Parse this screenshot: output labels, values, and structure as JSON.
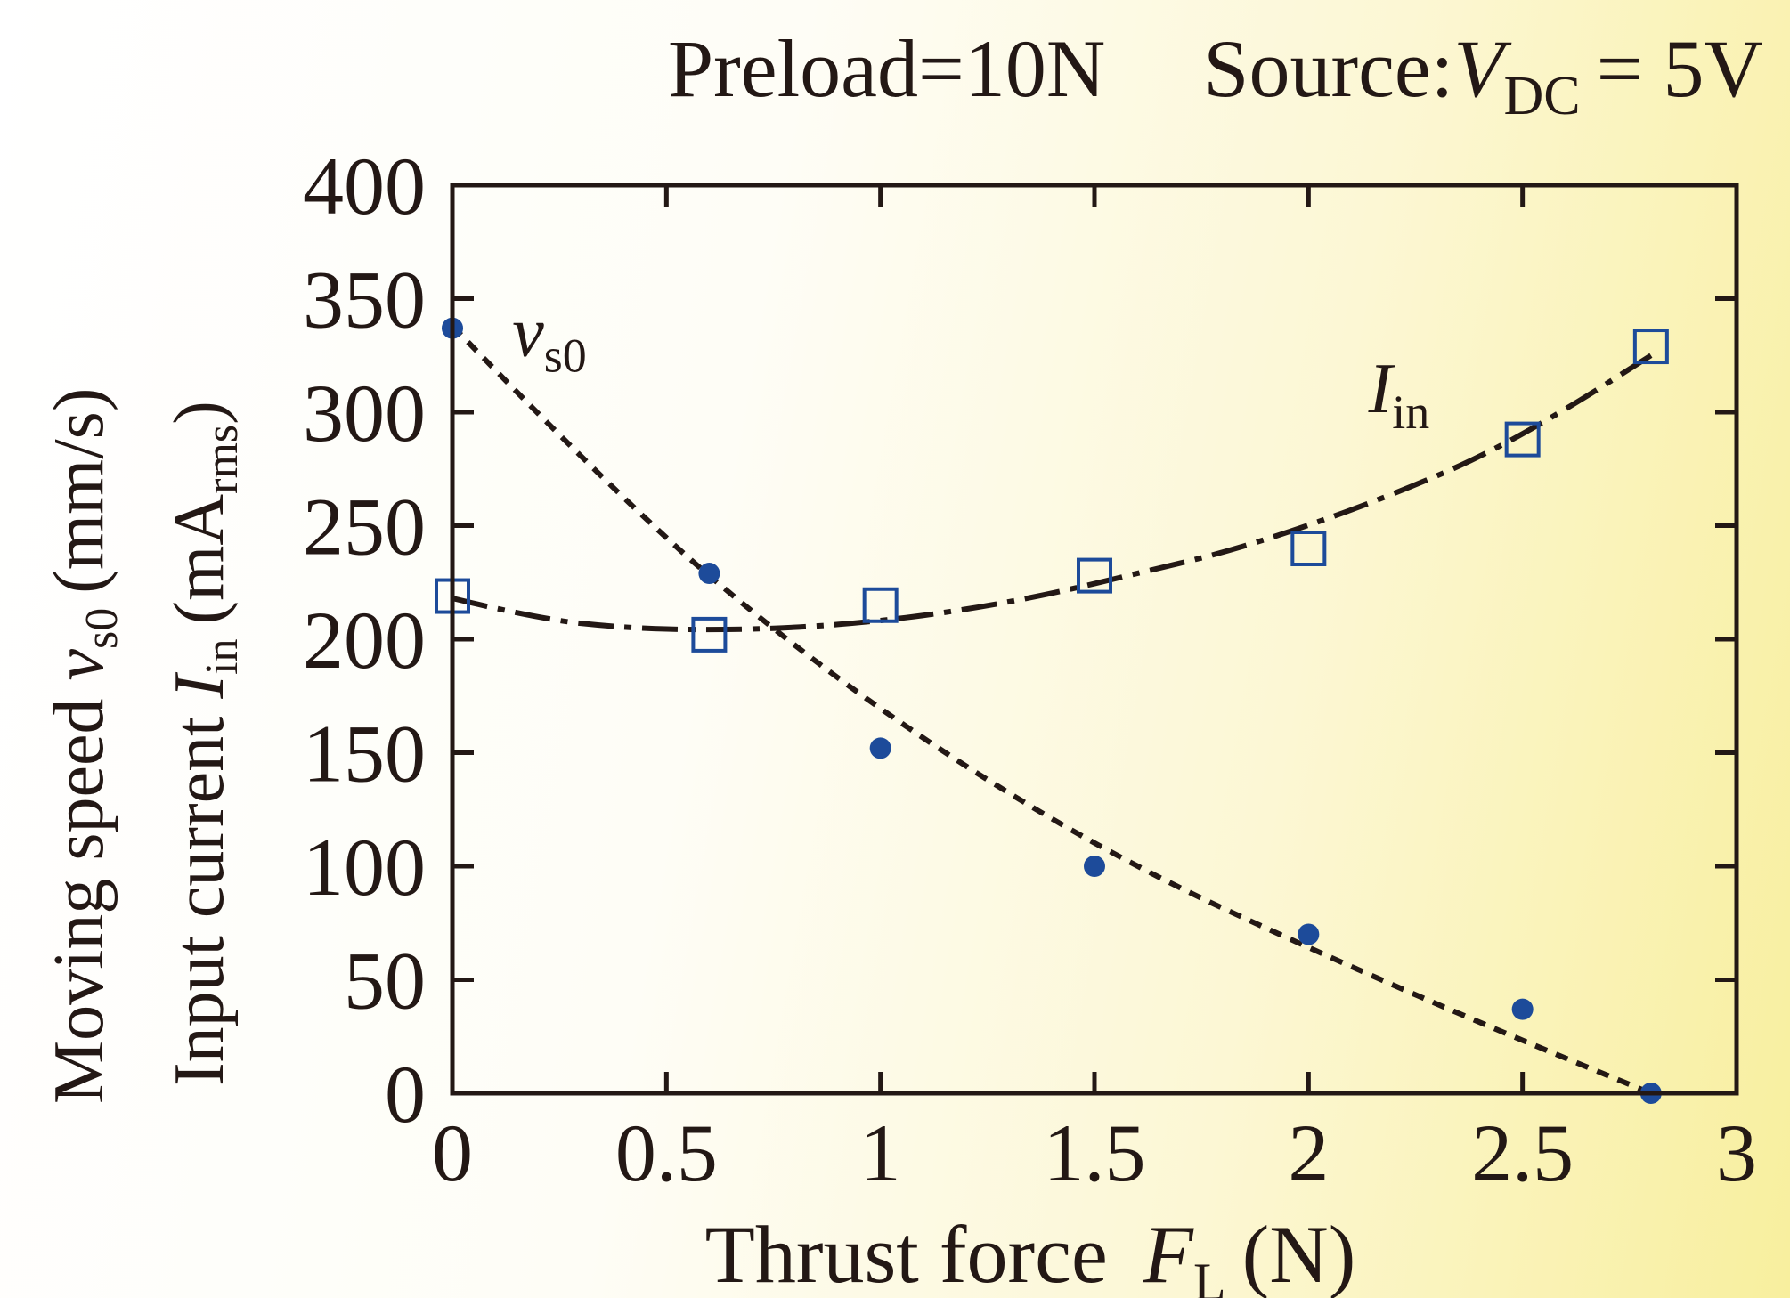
{
  "chart_data": {
    "type": "scatter",
    "title": {
      "preload": "Preload=10N",
      "source_prefix": "Source:",
      "source_var": "V",
      "source_sub": "DC",
      "source_value": "= 5V"
    },
    "xlabel": {
      "text": "Thrust force",
      "var": "F",
      "sub": "L",
      "unit": "(N)"
    },
    "ylabel_1": {
      "text": "Moving speed",
      "var": "v",
      "sub": "s0",
      "unit": "(mm/s)"
    },
    "ylabel_2": {
      "text": "Input current",
      "var": "I",
      "sub": "in",
      "unit_prefix": "(mA",
      "unit_sub": "rms",
      "unit_suffix": ")"
    },
    "xlim": [
      0,
      3
    ],
    "ylim": [
      0,
      400
    ],
    "x_ticks": [
      0,
      0.5,
      1,
      1.5,
      2,
      2.5,
      3
    ],
    "x_tick_labels": [
      "0",
      "0.5",
      "1",
      "1.5",
      "2",
      "2.5",
      "3"
    ],
    "y_ticks": [
      0,
      50,
      100,
      150,
      200,
      250,
      300,
      350,
      400
    ],
    "y_tick_labels": [
      "0",
      "50",
      "100",
      "150",
      "200",
      "250",
      "300",
      "350",
      "400"
    ],
    "grid": false,
    "legend": "none",
    "series": [
      {
        "label_var": "v",
        "label_sub": "s0",
        "marker": "filled-circle",
        "color": "#1d4b9a",
        "x": [
          0,
          0.6,
          1,
          1.5,
          2,
          2.5,
          2.8
        ],
        "y": [
          337,
          229,
          152,
          100,
          70,
          37,
          0
        ],
        "fit_line": "dashed",
        "fit_x": [
          0,
          0.4,
          0.8,
          1.2,
          1.6,
          2.0,
          2.4,
          2.8
        ],
        "fit_y": [
          338,
          260,
          196,
          143,
          99,
          64,
          31,
          0
        ]
      },
      {
        "label_var": "I",
        "label_sub": "in",
        "marker": "open-square",
        "color": "#1d4b9a",
        "x": [
          0,
          0.6,
          1,
          1.5,
          2,
          2.5,
          2.8
        ],
        "y": [
          219,
          202,
          215,
          228,
          240,
          288,
          329
        ],
        "fit_line": "dash-dot",
        "fit_x": [
          0,
          0.2,
          0.4,
          0.6,
          0.8,
          1.0,
          1.2,
          1.4,
          1.6,
          1.8,
          2.0,
          2.2,
          2.4,
          2.6,
          2.8
        ],
        "fit_y": [
          218,
          209,
          205,
          204,
          205,
          208,
          213,
          220,
          229,
          238,
          250,
          264,
          280,
          301,
          325
        ]
      }
    ],
    "line_color": "#231815"
  }
}
